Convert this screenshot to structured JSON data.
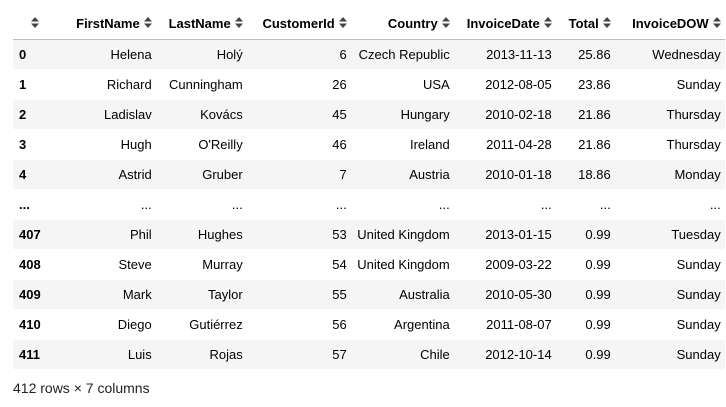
{
  "table": {
    "columns": [
      "FirstName",
      "LastName",
      "CustomerId",
      "Country",
      "InvoiceDate",
      "Total",
      "InvoiceDOW"
    ],
    "rows": [
      {
        "index": "0",
        "cells": [
          "Helena",
          "Holý",
          "6",
          "Czech Republic",
          "2013-11-13",
          "25.86",
          "Wednesday"
        ]
      },
      {
        "index": "1",
        "cells": [
          "Richard",
          "Cunningham",
          "26",
          "USA",
          "2012-08-05",
          "23.86",
          "Sunday"
        ]
      },
      {
        "index": "2",
        "cells": [
          "Ladislav",
          "Kovács",
          "45",
          "Hungary",
          "2010-02-18",
          "21.86",
          "Thursday"
        ]
      },
      {
        "index": "3",
        "cells": [
          "Hugh",
          "O'Reilly",
          "46",
          "Ireland",
          "2011-04-28",
          "21.86",
          "Thursday"
        ]
      },
      {
        "index": "4",
        "cells": [
          "Astrid",
          "Gruber",
          "7",
          "Austria",
          "2010-01-18",
          "18.86",
          "Monday"
        ]
      },
      {
        "index": "...",
        "cells": [
          "...",
          "...",
          "...",
          "...",
          "...",
          "...",
          "..."
        ]
      },
      {
        "index": "407",
        "cells": [
          "Phil",
          "Hughes",
          "53",
          "United Kingdom",
          "2013-01-15",
          "0.99",
          "Tuesday"
        ]
      },
      {
        "index": "408",
        "cells": [
          "Steve",
          "Murray",
          "54",
          "United Kingdom",
          "2009-03-22",
          "0.99",
          "Sunday"
        ]
      },
      {
        "index": "409",
        "cells": [
          "Mark",
          "Taylor",
          "55",
          "Australia",
          "2010-05-30",
          "0.99",
          "Sunday"
        ]
      },
      {
        "index": "410",
        "cells": [
          "Diego",
          "Gutiérrez",
          "56",
          "Argentina",
          "2011-08-07",
          "0.99",
          "Sunday"
        ]
      },
      {
        "index": "411",
        "cells": [
          "Luis",
          "Rojas",
          "57",
          "Chile",
          "2012-10-14",
          "0.99",
          "Sunday"
        ]
      }
    ]
  },
  "footer": {
    "shape_text": "412 rows × 7 columns"
  },
  "icons": {
    "sort": "sort-icon"
  }
}
